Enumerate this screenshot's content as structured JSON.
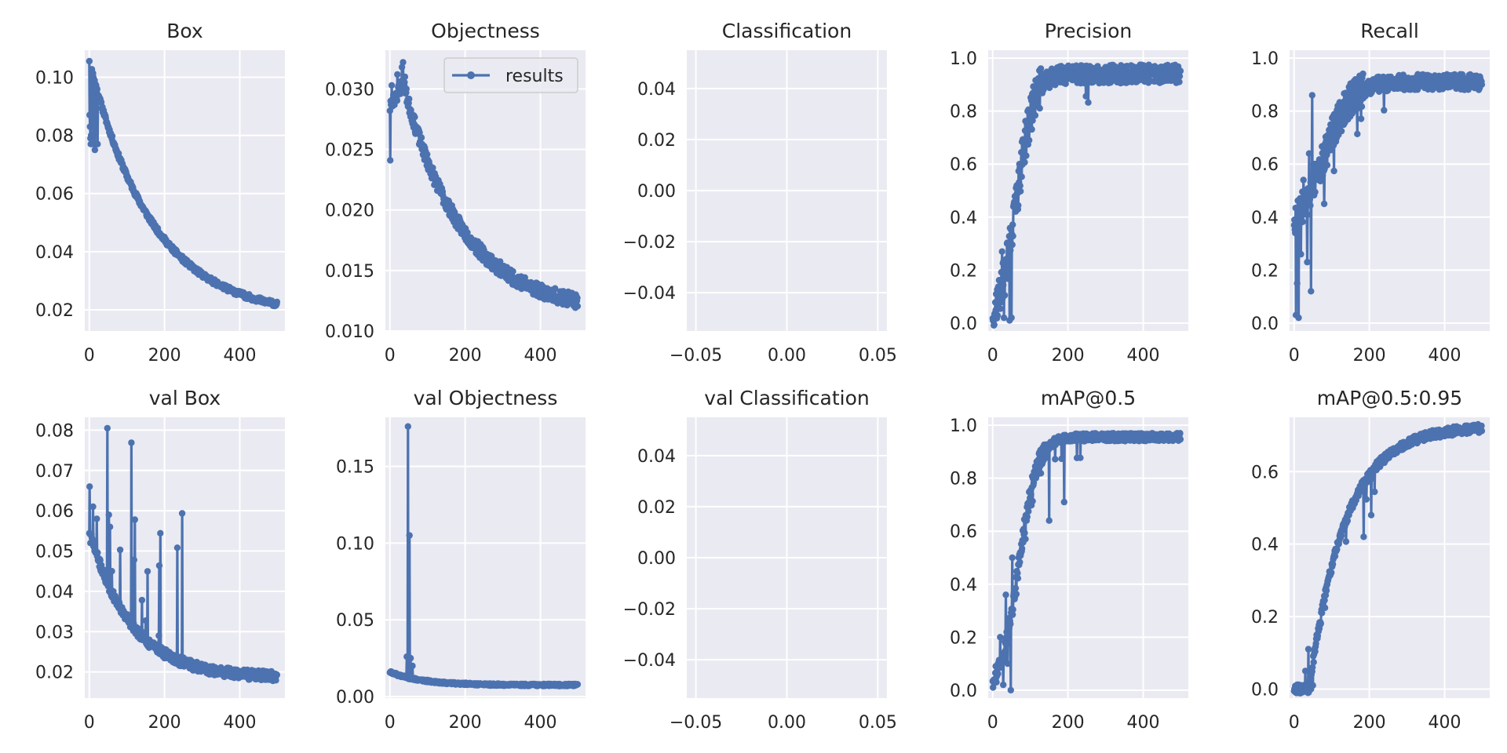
{
  "figure": {
    "background": "#ffffff",
    "axes_background": "#eaeaf2",
    "grid_color": "#ffffff",
    "line_color": "#4c72b0",
    "text_color": "#262626"
  },
  "chart_data": [
    {
      "type": "line",
      "title": "Box",
      "xlim": [
        -12,
        520
      ],
      "ylim": [
        0.0127,
        0.1093
      ],
      "xticks": [
        0,
        200,
        400
      ],
      "xtick_labels": [
        "0",
        "200",
        "400"
      ],
      "yticks": [
        0.02,
        0.04,
        0.06,
        0.08,
        0.1
      ],
      "ytick_labels": [
        "0.02",
        "0.04",
        "0.06",
        "0.08",
        "0.10"
      ],
      "series": [
        {
          "name": "results",
          "shape": "decay",
          "n": 500,
          "seed": 11,
          "start": 0.106,
          "end": 0.0175,
          "k": 3.0,
          "noise": 0.0009,
          "spikes": [
            [
              1,
              0.087
            ],
            [
              2,
              0.083
            ],
            [
              3,
              0.079
            ],
            [
              4,
              0.077
            ],
            [
              5,
              0.08
            ],
            [
              12,
              0.077
            ],
            [
              15,
              0.075
            ],
            [
              22,
              0.077
            ]
          ]
        }
      ]
    },
    {
      "type": "line",
      "title": "Objectness",
      "xlim": [
        -12,
        520
      ],
      "ylim": [
        0.01,
        0.0332
      ],
      "xticks": [
        0,
        200,
        400
      ],
      "xtick_labels": [
        "0",
        "200",
        "400"
      ],
      "yticks": [
        0.01,
        0.015,
        0.02,
        0.025,
        0.03
      ],
      "ytick_labels": [
        "0.010",
        "0.015",
        "0.020",
        "0.025",
        "0.030"
      ],
      "legend": {
        "label": "results",
        "loc": "upper right"
      },
      "series": [
        {
          "name": "results",
          "shape": "peakdecay",
          "n": 500,
          "seed": 23,
          "start": 0.0285,
          "peak": 0.0305,
          "peakAt": 35,
          "end": 0.0115,
          "k": 3.2,
          "noise": 0.0006,
          "spikes": [
            [
              1,
              0.0241
            ],
            [
              2,
              0.029
            ],
            [
              5,
              0.0303
            ],
            [
              20,
              0.0312
            ],
            [
              32,
              0.0318
            ],
            [
              35,
              0.0322
            ],
            [
              40,
              0.031
            ]
          ]
        }
      ]
    },
    {
      "type": "line",
      "title": "Classification",
      "xlim": [
        -0.055,
        0.055
      ],
      "ylim": [
        -0.055,
        0.055
      ],
      "xticks": [
        -0.05,
        0.0,
        0.05
      ],
      "xtick_labels": [
        "−0.05",
        "0.00",
        "0.05"
      ],
      "yticks": [
        -0.04,
        -0.02,
        0.0,
        0.02,
        0.04
      ],
      "ytick_labels": [
        "−0.04",
        "−0.02",
        "0.00",
        "0.02",
        "0.04"
      ],
      "series": []
    },
    {
      "type": "line",
      "title": "Precision",
      "xlim": [
        -12,
        520
      ],
      "ylim": [
        -0.03,
        1.03
      ],
      "xticks": [
        0,
        200,
        400
      ],
      "xtick_labels": [
        "0",
        "200",
        "400"
      ],
      "yticks": [
        0.0,
        0.2,
        0.4,
        0.6,
        0.8,
        1.0
      ],
      "ytick_labels": [
        "0.0",
        "0.2",
        "0.4",
        "0.6",
        "0.8",
        "1.0"
      ],
      "series": [
        {
          "name": "results",
          "shape": "sigmoid",
          "n": 500,
          "seed": 37,
          "start": 0.01,
          "end": 0.94,
          "mid": 65,
          "width": 22,
          "noise": 0.035,
          "dips": 0.12,
          "spikes": [
            [
              1,
              0.01
            ],
            [
              10,
              0.05
            ],
            [
              18,
              0.13
            ],
            [
              25,
              0.27
            ],
            [
              30,
              0.02
            ],
            [
              38,
              0.3
            ],
            [
              45,
              0.01
            ],
            [
              50,
              0.02
            ],
            [
              55,
              0.44
            ],
            [
              62,
              0.51
            ]
          ]
        }
      ]
    },
    {
      "type": "line",
      "title": "Recall",
      "xlim": [
        -12,
        520
      ],
      "ylim": [
        -0.03,
        1.03
      ],
      "xticks": [
        0,
        200,
        400
      ],
      "xtick_labels": [
        "0",
        "200",
        "400"
      ],
      "yticks": [
        0.0,
        0.2,
        0.4,
        0.6,
        0.8,
        1.0
      ],
      "ytick_labels": [
        "0.0",
        "0.2",
        "0.4",
        "0.6",
        "0.8",
        "1.0"
      ],
      "series": [
        {
          "name": "results",
          "shape": "sigmoid",
          "n": 500,
          "seed": 53,
          "start": 0.35,
          "end": 0.91,
          "mid": 80,
          "width": 35,
          "noise": 0.03,
          "dips": 0.15,
          "spikes": [
            [
              1,
              0.39
            ],
            [
              3,
              0.34
            ],
            [
              5,
              0.03
            ],
            [
              8,
              0.15
            ],
            [
              12,
              0.02
            ],
            [
              18,
              0.26
            ],
            [
              25,
              0.54
            ],
            [
              35,
              0.23
            ],
            [
              40,
              0.64
            ],
            [
              45,
              0.12
            ],
            [
              48,
              0.86
            ],
            [
              52,
              0.6
            ],
            [
              80,
              0.45
            ]
          ]
        }
      ]
    },
    {
      "type": "line",
      "title": "val Box",
      "xlim": [
        -12,
        520
      ],
      "ylim": [
        0.0135,
        0.0832
      ],
      "xticks": [
        0,
        200,
        400
      ],
      "xtick_labels": [
        "0",
        "200",
        "400"
      ],
      "yticks": [
        0.02,
        0.03,
        0.04,
        0.05,
        0.06,
        0.07,
        0.08
      ],
      "ytick_labels": [
        "0.02",
        "0.03",
        "0.04",
        "0.05",
        "0.06",
        "0.07",
        "0.08"
      ],
      "series": [
        {
          "name": "results",
          "shape": "decay",
          "n": 500,
          "seed": 71,
          "start": 0.055,
          "end": 0.0185,
          "k": 4.5,
          "noise": 0.0012,
          "dips": 0.05,
          "spikes": [
            [
              1,
              0.066
            ],
            [
              3,
              0.052
            ],
            [
              10,
              0.061
            ],
            [
              20,
              0.058
            ],
            [
              48,
              0.0805
            ],
            [
              52,
              0.059
            ],
            [
              55,
              0.056
            ],
            [
              60,
              0.045
            ],
            [
              100,
              0.033
            ],
            [
              115,
              0.033
            ],
            [
              185,
              0.029
            ]
          ]
        }
      ]
    },
    {
      "type": "line",
      "title": "val Objectness",
      "xlim": [
        -12,
        520
      ],
      "ylim": [
        -0.001,
        0.182
      ],
      "xticks": [
        0,
        200,
        400
      ],
      "xtick_labels": [
        "0",
        "200",
        "400"
      ],
      "yticks": [
        0.0,
        0.05,
        0.1,
        0.15
      ],
      "ytick_labels": [
        "0.00",
        "0.05",
        "0.10",
        "0.15"
      ],
      "series": [
        {
          "name": "results",
          "shape": "decay",
          "n": 500,
          "seed": 89,
          "start": 0.016,
          "end": 0.0075,
          "k": 6,
          "noise": 0.0007,
          "spikes": [
            [
              45,
              0.026
            ],
            [
              48,
              0.176
            ],
            [
              50,
              0.012
            ],
            [
              52,
              0.105
            ],
            [
              55,
              0.025
            ],
            [
              60,
              0.02
            ]
          ]
        }
      ]
    },
    {
      "type": "line",
      "title": "val Classification",
      "xlim": [
        -0.055,
        0.055
      ],
      "ylim": [
        -0.055,
        0.055
      ],
      "xticks": [
        -0.05,
        0.0,
        0.05
      ],
      "xtick_labels": [
        "−0.05",
        "0.00",
        "0.05"
      ],
      "yticks": [
        -0.04,
        -0.02,
        0.0,
        0.02,
        0.04
      ],
      "ytick_labels": [
        "−0.04",
        "−0.02",
        "0.00",
        "0.02",
        "0.04"
      ],
      "series": []
    },
    {
      "type": "line",
      "title": "mAP@0.5",
      "xlim": [
        -12,
        520
      ],
      "ylim": [
        -0.03,
        1.03
      ],
      "xticks": [
        0,
        200,
        400
      ],
      "xtick_labels": [
        "0",
        "200",
        "400"
      ],
      "yticks": [
        0.0,
        0.2,
        0.4,
        0.6,
        0.8,
        1.0
      ],
      "ytick_labels": [
        "0.0",
        "0.2",
        "0.4",
        "0.6",
        "0.8",
        "1.0"
      ],
      "series": [
        {
          "name": "results",
          "shape": "sigmoid",
          "n": 500,
          "seed": 97,
          "start": 0.0,
          "end": 0.955,
          "mid": 70,
          "width": 24,
          "noise": 0.015,
          "dips": 0.1,
          "spikes": [
            [
              1,
              0.01
            ],
            [
              10,
              0.03
            ],
            [
              20,
              0.2
            ],
            [
              28,
              0.02
            ],
            [
              35,
              0.36
            ],
            [
              40,
              0.1
            ],
            [
              48,
              0.0
            ],
            [
              52,
              0.5
            ],
            [
              150,
              0.64
            ],
            [
              190,
              0.71
            ]
          ]
        }
      ]
    },
    {
      "type": "line",
      "title": "mAP@0.5:0.95",
      "xlim": [
        -12,
        520
      ],
      "ylim": [
        -0.025,
        0.75
      ],
      "xticks": [
        0,
        200,
        400
      ],
      "xtick_labels": [
        "0",
        "200",
        "400"
      ],
      "yticks": [
        0.0,
        0.2,
        0.4,
        0.6
      ],
      "ytick_labels": [
        "0.0",
        "0.2",
        "0.4",
        "0.6"
      ],
      "series": [
        {
          "name": "results",
          "shape": "saturate",
          "n": 500,
          "seed": 113,
          "start": 0.0,
          "end": 0.725,
          "tau": 95,
          "delay": 40,
          "noise": 0.012,
          "dips": 0.06,
          "spikes": [
            [
              1,
              0.0
            ],
            [
              20,
              0.01
            ],
            [
              30,
              0.05
            ],
            [
              38,
              0.11
            ],
            [
              45,
              0.0
            ],
            [
              50,
              0.01
            ],
            [
              185,
              0.42
            ],
            [
              205,
              0.48
            ]
          ]
        }
      ]
    }
  ]
}
